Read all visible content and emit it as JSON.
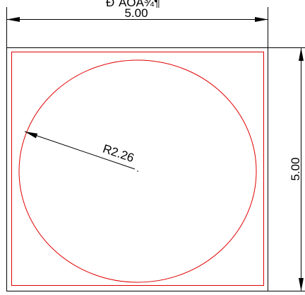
{
  "drawing": {
    "title_fragment": "Ð´ÃÖÃ¾¶",
    "width_dimension": "5.00",
    "height_dimension": "5.00",
    "radius_dimension": "R2.26",
    "colors": {
      "outline": "#000000",
      "geometry": "#e00000"
    }
  }
}
